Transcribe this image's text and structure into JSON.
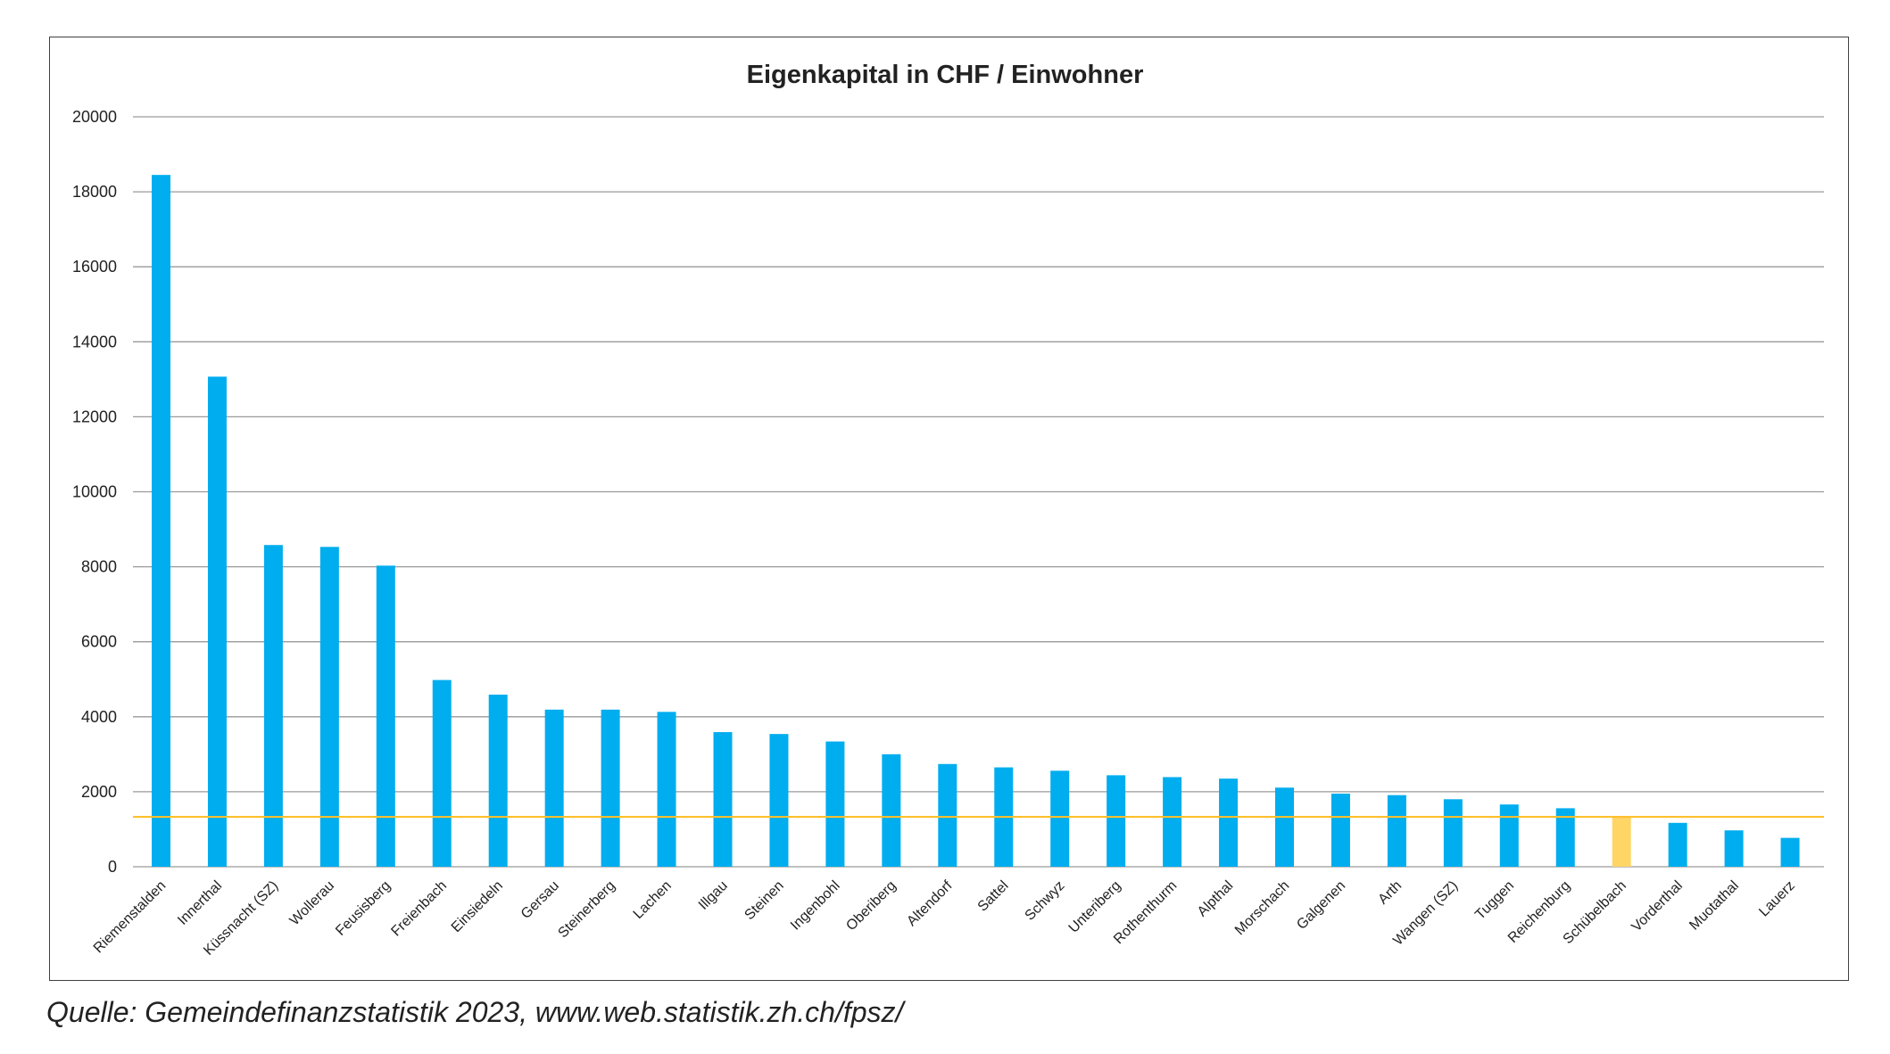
{
  "chart_data": {
    "type": "bar",
    "title": "Eigenkapital in CHF / Einwohner",
    "xlabel": "",
    "ylabel": "",
    "ylim": [
      0,
      20000
    ],
    "yticks": [
      0,
      2000,
      4000,
      6000,
      8000,
      10000,
      12000,
      14000,
      16000,
      18000,
      20000
    ],
    "grid": true,
    "legend": "none",
    "categories": [
      "Riemenstalden",
      "Innerthal",
      "Küssnacht (SZ)",
      "Wollerau",
      "Feusisberg",
      "Freienbach",
      "Einsiedeln",
      "Gersau",
      "Steinerberg",
      "Lachen",
      "Illgau",
      "Steinen",
      "Ingenbohl",
      "Oberiberg",
      "Altendorf",
      "Sattel",
      "Schwyz",
      "Unteriberg",
      "Rothenthurm",
      "Alpthal",
      "Morschach",
      "Galgenen",
      "Arth",
      "Wangen (SZ)",
      "Tuggen",
      "Reichenburg",
      "Schübelbach",
      "Vorderthal",
      "Muotathal",
      "Lauerz"
    ],
    "values": [
      18450,
      13070,
      8580,
      8530,
      8030,
      4980,
      4590,
      4190,
      4190,
      4130,
      3590,
      3540,
      3340,
      3000,
      2740,
      2650,
      2560,
      2440,
      2390,
      2350,
      2110,
      1950,
      1910,
      1800,
      1660,
      1560,
      1320,
      1170,
      970,
      770
    ],
    "highlight_category": "Schübelbach",
    "reference_line": 1330,
    "colors": {
      "bar": "#00ADEF",
      "highlight": "#FFD566",
      "reference_line": "#FFC02E",
      "grid": "#9A9A9A"
    }
  },
  "source": "Quelle: Gemeindefinanzstatistik 2023, www.web.statistik.zh.ch/fpsz/"
}
